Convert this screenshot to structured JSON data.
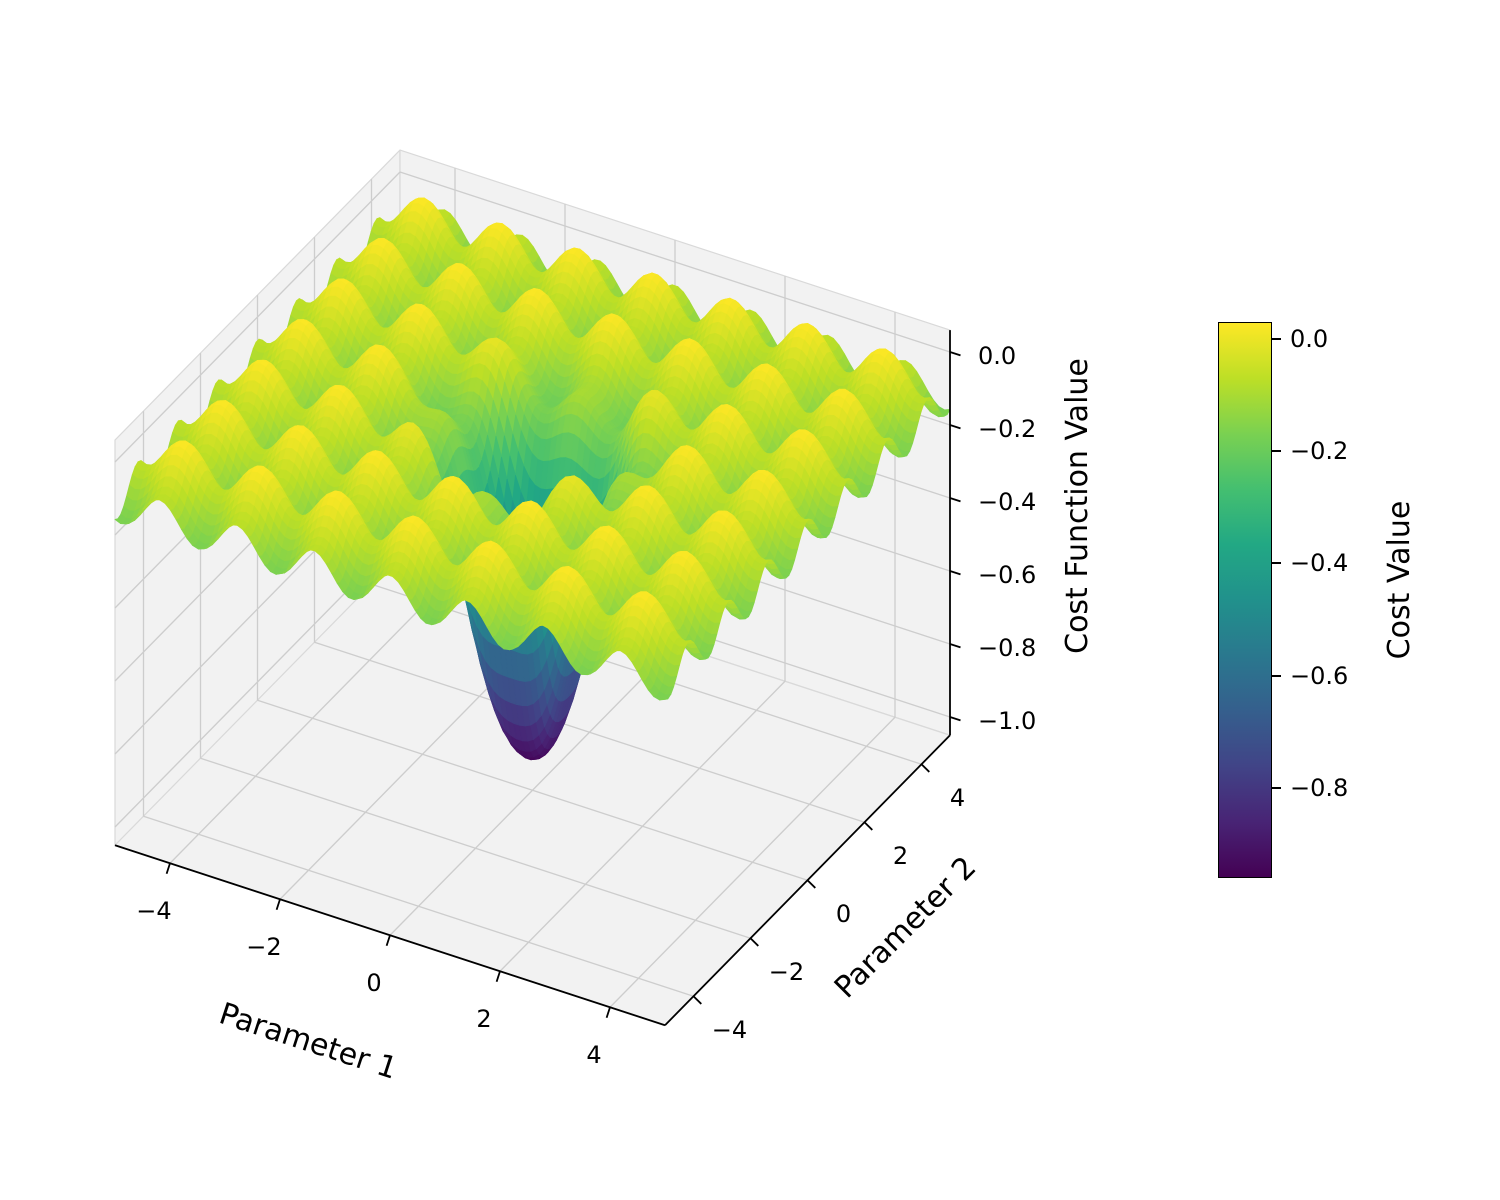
{
  "chart_data": {
    "type": "surface",
    "title": "",
    "xlabel": "Parameter 1",
    "ylabel": "Parameter 2",
    "zlabel": "Cost Function Value",
    "x_range": [
      -5,
      5
    ],
    "y_range": [
      -5,
      5
    ],
    "z_range": [
      -1.05,
      0.06
    ],
    "x_ticks": [
      -4,
      -2,
      0,
      2,
      4
    ],
    "x_tick_labels": [
      "−4",
      "−2",
      "0",
      "2",
      "4"
    ],
    "y_ticks": [
      -4,
      -2,
      0,
      2,
      4
    ],
    "y_tick_labels": [
      "−4",
      "−2",
      "0",
      "2",
      "4"
    ],
    "z_ticks": [
      0,
      -0.2,
      -0.4,
      -0.6,
      -0.8,
      -1.0
    ],
    "z_tick_labels": [
      "0.0",
      "−0.2",
      "−0.4",
      "−0.6",
      "−0.8",
      "−1.0"
    ],
    "surface": {
      "function": "z = -0.99*exp(-(x^2+y^2)/1.2) + 0.05*(cos(4.5x)+cos(4.5y)) - 0.07",
      "well_depth": 0.99,
      "well_sigma": 1.2,
      "ripple_amplitude": 0.05,
      "ripple_frequency": 4.5,
      "ripple_offset": -0.07,
      "z_min": -0.96,
      "z_max": 0.03,
      "grid_points": 100
    },
    "colormap": {
      "name": "viridis",
      "stops": [
        [
          0.0,
          "#440154"
        ],
        [
          0.1,
          "#482475"
        ],
        [
          0.2,
          "#414487"
        ],
        [
          0.3,
          "#355f8d"
        ],
        [
          0.4,
          "#2a788e"
        ],
        [
          0.5,
          "#21918c"
        ],
        [
          0.6,
          "#22a884"
        ],
        [
          0.7,
          "#44bf70"
        ],
        [
          0.8,
          "#7ad151"
        ],
        [
          0.9,
          "#bddf26"
        ],
        [
          1.0,
          "#fde725"
        ]
      ]
    },
    "colorbar": {
      "label": "Cost Value",
      "vmin": -0.96,
      "vmax": 0.03,
      "ticks": [
        0,
        -0.2,
        -0.4,
        -0.6,
        -0.8
      ],
      "tick_labels": [
        "0.0",
        "−0.2",
        "−0.4",
        "−0.6",
        "−0.8"
      ]
    },
    "colors": {
      "background": "#ffffff",
      "pane": "#f2f2f2",
      "pane_edge": "#d9d9d9",
      "grid": "#cdcdcd",
      "spine": "#000000",
      "text": "#000000"
    },
    "legend": null,
    "grid": true
  }
}
